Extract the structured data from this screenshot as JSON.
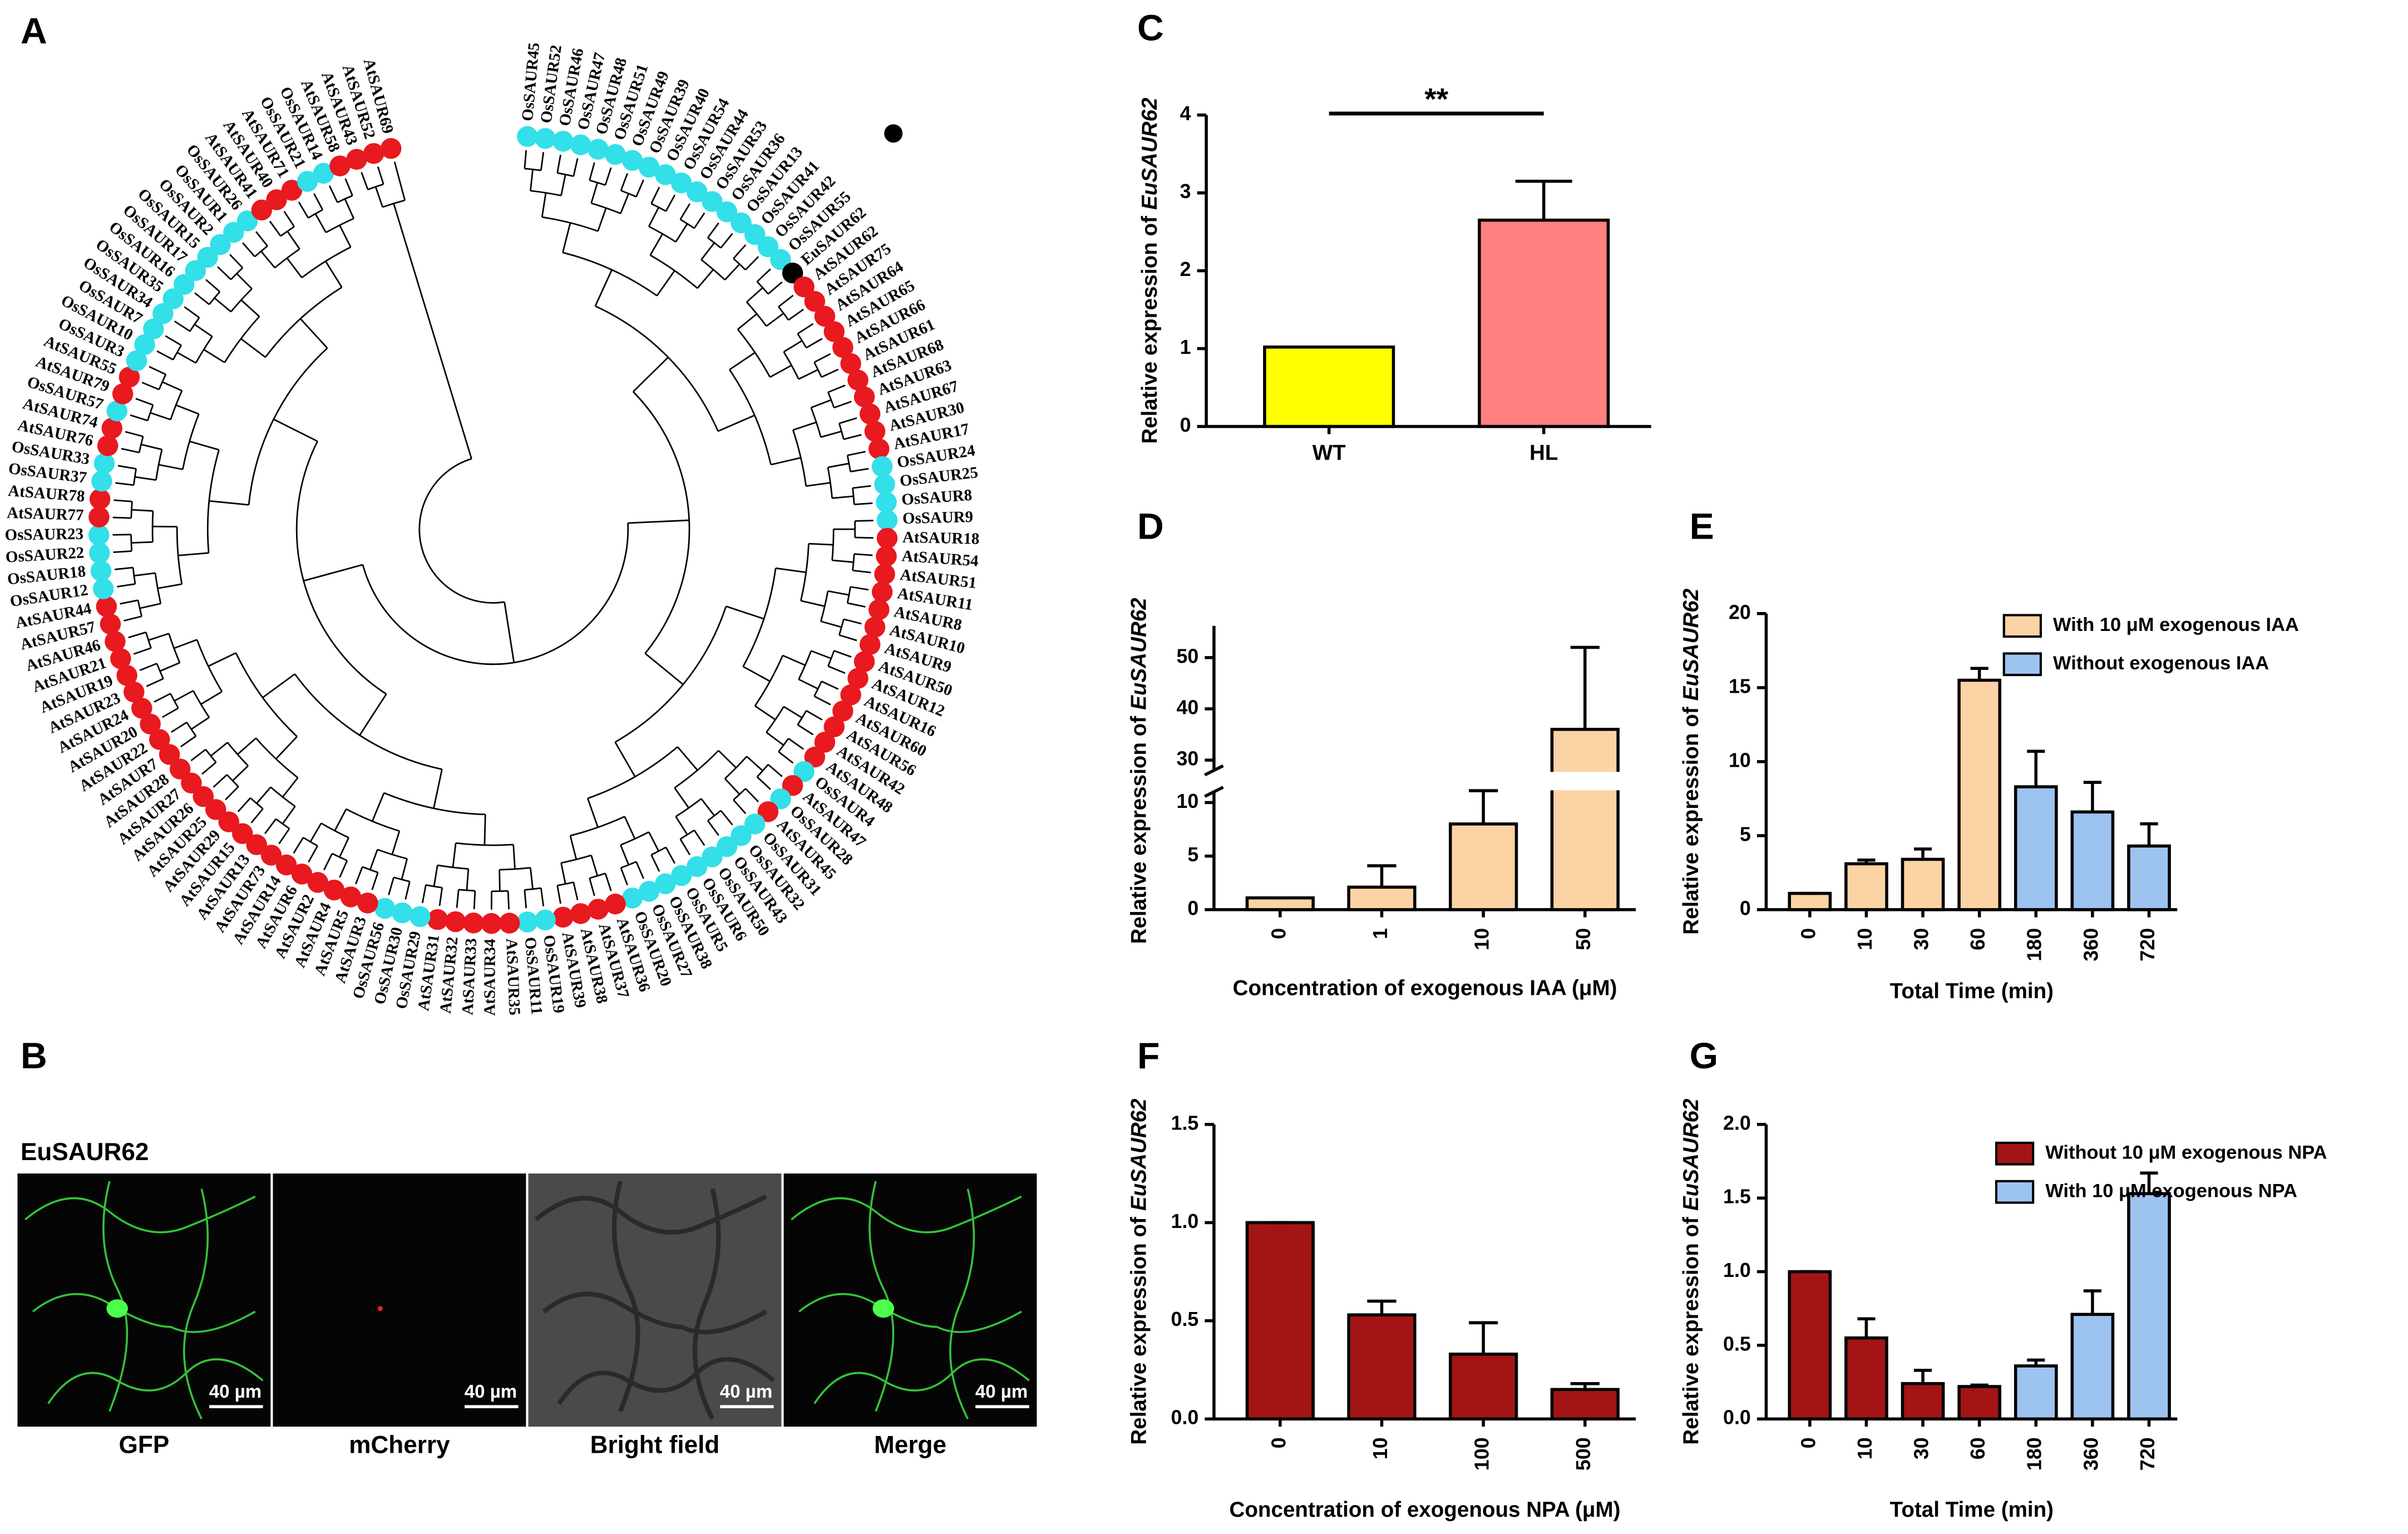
{
  "tree": {
    "panel_label": "A",
    "leaves": [
      "OsSAUR45",
      "OsSAUR52",
      "OsSAUR46",
      "OsSAUR47",
      "OsSAUR48",
      "OsSAUR51",
      "OsSAUR49",
      "OsSAUR39",
      "OsSAUR40",
      "OsSAUR54",
      "OsSAUR44",
      "OsSAUR53",
      "OsSAUR36",
      "OsSAUR13",
      "OsSAUR41",
      "OsSAUR42",
      "OsSAUR55",
      "EuSAUR62",
      "AtSAUR62",
      "AtSAUR75",
      "AtSAUR64",
      "AtSAUR65",
      "AtSAUR66",
      "AtSAUR61",
      "AtSAUR68",
      "AtSAUR63",
      "AtSAUR67",
      "AtSAUR30",
      "AtSAUR17",
      "OsSAUR24",
      "OsSAUR25",
      "OsSAUR8",
      "OsSAUR9",
      "AtSAUR18",
      "AtSAUR54",
      "AtSAUR51",
      "AtSAUR11",
      "AtSAUR8",
      "AtSAUR10",
      "AtSAUR9",
      "AtSAUR50",
      "AtSAUR12",
      "AtSAUR16",
      "AtSAUR60",
      "AtSAUR56",
      "AtSAUR42",
      "AtSAUR48",
      "OsSAUR4",
      "AtSAUR47",
      "OsSAUR28",
      "AtSAUR45",
      "OsSAUR31",
      "OsSAUR32",
      "OsSAUR43",
      "OsSAUR50",
      "OsSAUR6",
      "OsSAUR5",
      "OsSAUR38",
      "OsSAUR27",
      "OsSAUR20",
      "AtSAUR36",
      "AtSAUR37",
      "AtSAUR38",
      "AtSAUR39",
      "OsSAUR19",
      "OsSAUR11",
      "AtSAUR35",
      "AtSAUR34",
      "AtSAUR33",
      "AtSAUR32",
      "AtSAUR31",
      "OsSAUR29",
      "OsSAUR30",
      "OsSAUR56",
      "AtSAUR3",
      "AtSAUR5",
      "AtSAUR4",
      "AtSAUR2",
      "AtSAUR6",
      "AtSAUR14",
      "AtSAUR73",
      "AtSAUR13",
      "AtSAUR15",
      "AtSAUR29",
      "AtSAUR25",
      "AtSAUR26",
      "AtSAUR27",
      "AtSAUR28",
      "AtSAUR7",
      "AtSAUR22",
      "AtSAUR20",
      "AtSAUR24",
      "AtSAUR23",
      "AtSAUR19",
      "AtSAUR21",
      "AtSAUR46",
      "AtSAUR57",
      "AtSAUR44",
      "OsSAUR12",
      "OsSAUR18",
      "OsSAUR22",
      "OsSAUR23",
      "AtSAUR77",
      "AtSAUR78",
      "OsSAUR37",
      "OsSAUR33",
      "AtSAUR76",
      "AtSAUR74",
      "OsSAUR57",
      "AtSAUR79",
      "AtSAUR55",
      "OsSAUR3",
      "OsSAUR10",
      "OsSAUR7",
      "OsSAUR34",
      "OsSAUR35",
      "OsSAUR16",
      "OsSAUR17",
      "OsSAUR15",
      "OsSAUR2",
      "OsSAUR1",
      "OsSAUR26",
      "AtSAUR41",
      "AtSAUR40",
      "AtSAUR71",
      "OsSAUR21",
      "OsSAUR14",
      "AtSAUR58",
      "AtSAUR43",
      "AtSAUR52",
      "AtSAUR69"
    ],
    "colors": {
      "At": "#e8191f",
      "Os": "#33dfe8",
      "Eu": "#000000"
    }
  },
  "micrograph": {
    "panel_label": "B",
    "construct": "EuSAUR62",
    "channels": [
      "GFP",
      "mCherry",
      "Bright field",
      "Merge"
    ],
    "scale_bar": "40 µm"
  },
  "chart_data": [
    {
      "type": "bar",
      "panel_label": "C",
      "ylabel": "Relative expression of",
      "ylabel_italic": "EuSAUR62",
      "categories": [
        "WT",
        "HL"
      ],
      "values": [
        1.02,
        2.65
      ],
      "errors": [
        0,
        0.5
      ],
      "colors": [
        "#ffff00",
        "#ff8080"
      ],
      "ylim": [
        0,
        4
      ],
      "yticks": [
        0,
        1,
        2,
        3,
        4
      ],
      "annotation": "**"
    },
    {
      "type": "bar",
      "panel_label": "D",
      "ylabel": "Relative expression of",
      "ylabel_italic": "EuSAUR62",
      "xlabel": "Concentration of exogenous IAA (μM)",
      "categories": [
        "0",
        "1",
        "10",
        "50"
      ],
      "values": [
        1.1,
        2.1,
        8.0,
        36
      ],
      "errors": [
        0,
        2.0,
        3.9,
        16
      ],
      "color": "#fbd3a5",
      "ylim": [
        0,
        55
      ],
      "axis_break": [
        11,
        28
      ],
      "yticks": [
        0,
        5,
        10,
        30,
        40,
        50
      ]
    },
    {
      "type": "bar",
      "panel_label": "E",
      "ylabel": "Relative expression of",
      "ylabel_italic": "EuSAUR62",
      "xlabel": "Total Time (min)",
      "categories": [
        "0",
        "10",
        "30",
        "60",
        "180",
        "360",
        "720"
      ],
      "series": [
        {
          "name": "With 10 μM exogenous IAA",
          "color": "#fbd3a5",
          "values": [
            1.1,
            3.1,
            3.4,
            15.5,
            null,
            null,
            null
          ],
          "errors": [
            0,
            0.25,
            0.7,
            0.8,
            null,
            null,
            null
          ]
        },
        {
          "name": "Without exogenous  IAA",
          "color": "#9dc3f0",
          "values": [
            null,
            null,
            null,
            null,
            8.3,
            6.6,
            4.3
          ],
          "errors": [
            null,
            null,
            null,
            null,
            2.4,
            2.0,
            1.5
          ]
        }
      ],
      "ylim": [
        0,
        20
      ],
      "yticks": [
        0,
        5,
        10,
        15,
        20
      ]
    },
    {
      "type": "bar",
      "panel_label": "F",
      "ylabel": "Relative expression of",
      "ylabel_italic": "EuSAUR62",
      "xlabel": "Concentration of exogenous NPA (μM)",
      "categories": [
        "0",
        "10",
        "100",
        "500"
      ],
      "values": [
        1.0,
        0.53,
        0.33,
        0.15
      ],
      "errors": [
        0,
        0.07,
        0.16,
        0.03
      ],
      "color": "#a31515",
      "ylim": [
        0,
        1.5
      ],
      "yticks": [
        {
          "value": 0,
          "label": "0.0"
        },
        {
          "value": 0.5,
          "label": "0.5"
        },
        {
          "value": 1,
          "label": "1.0"
        },
        {
          "value": 1.5,
          "label": "1.5"
        }
      ]
    },
    {
      "type": "bar",
      "panel_label": "G",
      "ylabel": "Relative expression of",
      "ylabel_italic": "EuSAUR62",
      "xlabel": "Total Time (min)",
      "categories": [
        "0",
        "10",
        "30",
        "60",
        "180",
        "360",
        "720"
      ],
      "series": [
        {
          "name": "Without 10 μM exogenous NPA",
          "color": "#a31515",
          "values": [
            1.0,
            0.55,
            0.24,
            0.22,
            null,
            null,
            null
          ],
          "errors": [
            0,
            0.13,
            0.09,
            0.01,
            null,
            null,
            null
          ]
        },
        {
          "name": "With 10 μM exogenous NPA",
          "color": "#9dc3f0",
          "values": [
            null,
            null,
            null,
            null,
            0.36,
            0.71,
            1.53
          ],
          "errors": [
            null,
            null,
            null,
            null,
            0.04,
            0.16,
            0.14
          ]
        }
      ],
      "ylim": [
        0,
        2
      ],
      "yticks": [
        {
          "value": 0,
          "label": "0.0"
        },
        {
          "value": 0.5,
          "label": "0.5"
        },
        {
          "value": 1,
          "label": "1.0"
        },
        {
          "value": 1.5,
          "label": "1.5"
        },
        {
          "value": 2,
          "label": "2.0"
        }
      ]
    }
  ]
}
